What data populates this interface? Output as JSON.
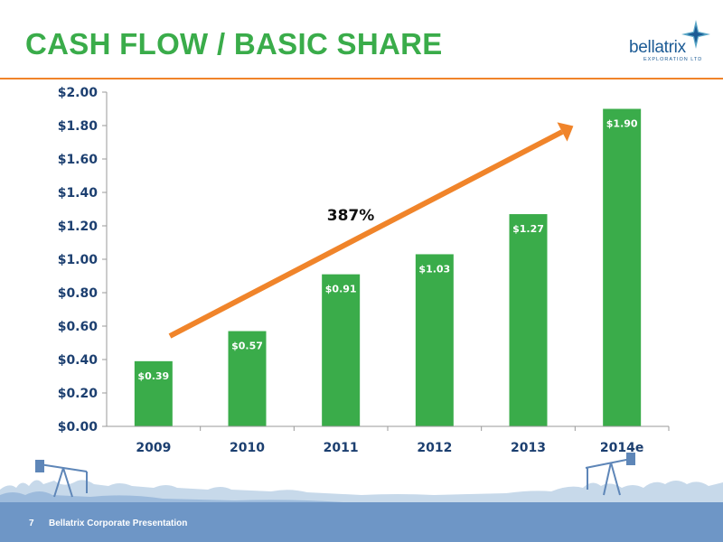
{
  "slide": {
    "title": "CASH FLOW / BASIC SHARE",
    "page_number": "7",
    "footer": "Bellatrix Corporate Presentation"
  },
  "logo": {
    "name": "bellatrix",
    "tagline": "EXPLORATION LTD"
  },
  "colors": {
    "title": "#3aac4a",
    "bar": "#3aac4a",
    "accent_line": "#f0842a",
    "axis_labels": "#1c3f70",
    "footer_bar": "#6e96c6",
    "logo": "#1c5b95"
  },
  "chart_data": {
    "type": "bar",
    "title": "",
    "xlabel": "",
    "ylabel": "",
    "categories": [
      "2009",
      "2010",
      "2011",
      "2012",
      "2013",
      "2014e"
    ],
    "values": [
      0.39,
      0.57,
      0.91,
      1.03,
      1.27,
      1.9
    ],
    "data_labels": [
      "$0.39",
      "$0.57",
      "$0.91",
      "$1.03",
      "$1.27",
      "$1.90"
    ],
    "ylim": [
      0,
      2.0
    ],
    "yticks": [
      0,
      0.2,
      0.4,
      0.6,
      0.8,
      1.0,
      1.2,
      1.4,
      1.6,
      1.8,
      2.0
    ],
    "ytick_labels": [
      "$0.00",
      "$0.20",
      "$0.40",
      "$0.60",
      "$0.80",
      "$1.00",
      "$1.20",
      "$1.40",
      "$1.60",
      "$1.80",
      "$2.00"
    ],
    "grid": false,
    "legend": "none",
    "annotation": {
      "text": "387%",
      "shape": "trend-arrow"
    }
  }
}
